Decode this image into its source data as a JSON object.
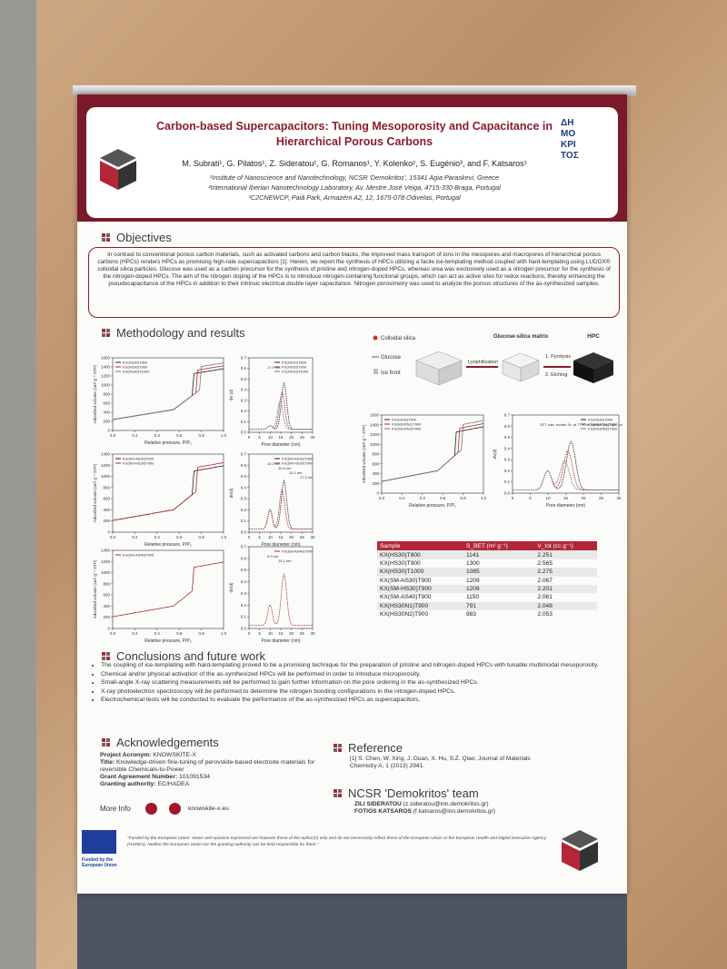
{
  "header": {
    "title_line1": "Carbon-based Supercapacitors: Tuning Mesoporosity and Capacitance in",
    "title_line2": "Hierarchical Porous Carbons",
    "authors": "M. Subrati¹, G. Pilatos¹, Z. Sideratou¹, G. Romanos¹, Y. Kolenko², S. Eugénio³, and F. Katsaros¹",
    "affiliations": [
      "¹Institute of Nanoscience and Nanotechnology, NCSR 'Demokritos', 15341 Agia Paraskevi, Greece",
      "²International Iberian Nanotechnology Laboratory, Av. Mestre José Veiga, 4715-330 Braga, Portugal",
      "³C2CNEWCP, Paiã Park, Armazém A2, 12, 1675-078 Odivelas, Portugal"
    ],
    "logo_text": "ΔΗΜΟ ΚΡΙ ΤΟΣ"
  },
  "objectives": {
    "heading": "Objectives",
    "text": "In contrast to conventional porous carbon materials, such as activated carbons and carbon blacks, the improved mass transport of ions in the mesopores and macropores of hierarchical porous carbons (HPCs) renders HPCs as promising high-rate supercapacitors [1]. Herein, we report the synthesis of HPCs utilizing a facile ice-templating method coupled with hard-templating using LUDOX® colloidal silica particles. Glucose was used as a carbon precursor for the synthesis of pristine and nitrogen-doped HPCs, whereas urea was exclusively used as a nitrogen precursor for the synthesis of the nitrogen-doped HPCs. The aim of the nitrogen doping of the HPCs is to introduce nitrogen-containing functional groups, which can act as active sites for redox reactions, thereby enhancing the pseudocapacitance of the HPCs in addition to their intrinsic electrical double layer capacitance. Nitrogen porosimetry was used to analyze the porous structures of the as-synthesized samples."
  },
  "methodology": {
    "heading": "Methodology and results",
    "schematic": {
      "labels": [
        "Colloidal silica",
        "Glucose",
        "Ice front",
        "Lyophilization",
        "Glucose-silica matrix",
        "1. Pyrolysis",
        "2. Etching",
        "HPC"
      ]
    },
    "plots": [
      {
        "xlabel": "Relative pressure, P/P₀",
        "ylabel": "Adsorbed volume (cm³ g⁻¹ STP)",
        "xlim": [
          0,
          1
        ],
        "ylim": [
          0,
          1600
        ],
        "xticks": [
          {
            "value": 0,
            "label": "0.0"
          },
          0.2,
          0.4,
          0.6,
          0.8,
          {
            "value": 1,
            "label": "1.0"
          }
        ],
        "yticks": [
          0,
          200,
          400,
          600,
          800,
          1000,
          1200,
          1400,
          1600
        ],
        "legend": [
          {
            "name": "KX(HS30)T800",
            "color": "#222"
          },
          {
            "name": "KX(HS30)T900",
            "color": "#b3263a"
          },
          {
            "name": "KX(HS30)T1000",
            "color": "#777"
          }
        ],
        "annotations": []
      },
      {
        "xlabel": "Pore diameter (nm)",
        "ylabel": "dV (d)",
        "xlim": [
          0,
          30
        ],
        "ylim": [
          0,
          0.7
        ],
        "xticks": [
          0,
          5,
          10,
          15,
          20,
          25,
          30
        ],
        "yticks": [
          {
            "value": 0,
            "label": "0.0"
          },
          0.1,
          0.2,
          0.3,
          0.4,
          0.5,
          0.6,
          0.7
        ],
        "legend": [
          {
            "name": "KX(HS30)T800",
            "color": "#222"
          },
          {
            "name": "KX(HS30)T900",
            "color": "#b3263a"
          },
          {
            "name": "KX(HS30)T1000",
            "color": "#777"
          }
        ],
        "annotations": [
          "17.9 nm"
        ]
      },
      {
        "xlabel": "Relative pressure, P/P₀",
        "ylabel": "Adsorbed volume (cm³ g⁻¹ STP)",
        "xlim": [
          0,
          1
        ],
        "ylim": [
          0,
          1400
        ],
        "xticks": [
          {
            "value": 0,
            "label": "0.0"
          },
          0.2,
          0.4,
          0.6,
          0.8,
          {
            "value": 1,
            "label": "1.0"
          }
        ],
        "yticks": [
          0,
          200,
          400,
          600,
          800,
          1000,
          1200,
          1400
        ],
        "legend": [
          {
            "name": "KX(SM-AS30)T900",
            "color": "#222"
          },
          {
            "name": "KX(SM-HS30)T900",
            "color": "#b3263a"
          }
        ],
        "annotations": []
      },
      {
        "xlabel": "Pore diameter (nm)",
        "ylabel": "dV(d)",
        "xlim": [
          0,
          30
        ],
        "ylim": [
          0,
          0.7
        ],
        "xticks": [
          0,
          5,
          10,
          15,
          20,
          25,
          30
        ],
        "yticks": [
          {
            "value": 0,
            "label": "0.0"
          },
          0.1,
          0.2,
          0.3,
          0.4,
          0.5,
          0.6,
          0.7
        ],
        "legend": [
          {
            "name": "KX(SM-AS30)T900",
            "color": "#222"
          },
          {
            "name": "KX(SM-HS30)T900",
            "color": "#b3263a"
          }
        ],
        "annotations": [
          "10.3 nm",
          "10.8 nm",
          "15.1 nm",
          "17.3 nm"
        ]
      },
      {
        "xlabel": "Relative pressure, P/P₀",
        "ylabel": "Adsorbed volume (cm³ g⁻¹ STP)",
        "xlim": [
          0,
          1
        ],
        "ylim": [
          0,
          1400
        ],
        "xticks": [
          {
            "value": 0,
            "label": "0.0"
          },
          0.2,
          0.4,
          0.6,
          0.8,
          {
            "value": 1,
            "label": "1.0"
          }
        ],
        "yticks": [
          0,
          200,
          400,
          600,
          800,
          1000,
          1200,
          1400
        ],
        "legend": [
          {
            "name": "KX(SM-AS40)T900",
            "color": "#b3263a"
          }
        ],
        "annotations": []
      },
      {
        "xlabel": "Pore diameter (nm)",
        "ylabel": "dV(d)",
        "xlim": [
          0,
          30
        ],
        "ylim": [
          0,
          0.7
        ],
        "xticks": [
          0,
          5,
          10,
          15,
          20,
          25,
          30
        ],
        "yticks": [
          {
            "value": 0,
            "label": "0.0"
          },
          0.1,
          0.2,
          0.3,
          0.4,
          0.5,
          0.6,
          0.7
        ],
        "legend": [
          {
            "name": "KX(SM-AS40)T900",
            "color": "#b3263a"
          }
        ],
        "annotations": [
          "6.9 nm",
          "15.1 nm"
        ]
      },
      {
        "xlabel": "Relative pressure, P/P₀",
        "ylabel": "Adsorbed volume (cm³ g⁻¹ STP)",
        "xlim": [
          0,
          1
        ],
        "ylim": [
          0,
          1600
        ],
        "xticks": [
          {
            "value": 0,
            "label": "0.0"
          },
          0.2,
          0.4,
          0.6,
          0.8,
          {
            "value": 1,
            "label": "1.0"
          }
        ],
        "yticks": [
          0,
          200,
          400,
          600,
          800,
          1000,
          1200,
          1400,
          1600
        ],
        "legend": [
          {
            "name": "KX(HS30)T900",
            "color": "#222"
          },
          {
            "name": "KX(HS30N1)T900",
            "color": "#b3263a"
          },
          {
            "name": "KX(HS30N2)T900",
            "color": "#777"
          }
        ],
        "annotations": []
      },
      {
        "xlabel": "Pore diameter (nm)",
        "ylabel": "dV(d)",
        "xlim": [
          0,
          30
        ],
        "ylim": [
          0,
          0.7
        ],
        "xticks": [
          0,
          5,
          10,
          15,
          20,
          25,
          30
        ],
        "yticks": [
          {
            "value": 0,
            "label": "0.0"
          },
          0.1,
          0.2,
          0.3,
          0.4,
          0.5,
          0.6,
          0.7
        ],
        "legend": [
          {
            "name": "KX(HS30)T900",
            "color": "#222"
          },
          {
            "name": "KX(HS30N1)T900",
            "color": "#b3263a"
          },
          {
            "name": "KX(HS30N2)T900",
            "color": "#777"
          }
        ],
        "annotations": [
          "DFT calc. model: N₂ at 77 K on carbon (cyl./sph. pores, QSDFT adsorption branch)"
        ]
      }
    ],
    "table": {
      "columns": [
        "Sample",
        "S_BET (m² g⁻¹)",
        "V_tot (cc g⁻¹)"
      ],
      "rows": [
        [
          "KX(HS30)T800",
          "1141",
          "2.251"
        ],
        [
          "KX(HS30)T900",
          "1300",
          "2.565"
        ],
        [
          "KX(HS30)T1000",
          "1085",
          "2.275"
        ],
        [
          "KX(SM-AS30)T900",
          "1209",
          "2.067"
        ],
        [
          "KX(SM-HS30)T900",
          "1208",
          "2.201"
        ],
        [
          "KX(SM-AS40)T900",
          "1150",
          "2.061"
        ],
        [
          "KX(HS30N1)T900",
          "791",
          "2.048"
        ],
        [
          "KX(HS30N2)T900",
          "983",
          "2.053"
        ]
      ]
    }
  },
  "conclusions": {
    "heading": "Conclusions and future work",
    "bullets": [
      "The coupling of ice-templating with hard-templating proved to be a promising technique for the preparation of pristine and nitrogen-doped HPCs with tunable multimodal mesoporosity.",
      "Chemical and/or physical activation of the as-synthesized HPCs will be performed in order to introduce microporosity.",
      "Small-angle X-ray scattering measurements will be performed to gain further information on the pore ordering in the as-synthesized HPCs.",
      "X-ray photoelectron spectroscopy will be performed to determine the nitrogen bonding configurations in the nitrogen-doped HPCs.",
      "Electrochemical tests will be conducted to evaluate the performance of the as-synthesized HPCs as supercapacitors."
    ]
  },
  "acknowledgements": {
    "heading": "Acknowledgements",
    "items": [
      [
        "Project Acronym:",
        "KNOWSKITE-X"
      ],
      [
        "Title:",
        "Knowledge-driven fine-tuning of perovskite-based electrode materials for reversible Chemicals-to-Power"
      ],
      [
        "Grant Agreement Number:",
        "101091534"
      ],
      [
        "Granting authority:",
        "EC/HADEA"
      ]
    ],
    "more_info": "More Info",
    "website": "knowskite-x.eu"
  },
  "reference": {
    "heading": "Reference",
    "text": "[1]  S. Chen, W. Xing, J. Duan, X. Hu, S.Z. Qiao, Journal of Materials Chemistry A, 1 (2013) 2941."
  },
  "team": {
    "heading": "NCSR 'Demokritos' team",
    "members": [
      [
        "ZILI SIDERATOU",
        "(z.sideratou@inn.demokritos.gr)"
      ],
      [
        "FOTIOS KATSAROS",
        "(f.katsaros@inn.demokritos.gr)"
      ]
    ]
  },
  "footer": {
    "eu_label": "Funded by the European Union",
    "disclaimer": "\"Funded by the European Union. Views and opinions expressed are however those of the author(s) only and do not necessarily reflect those of the European Union or the European Health and Digital Executive Agency (HADEA). Neither the European Union nor the granting authority can be held responsible for them.\""
  }
}
